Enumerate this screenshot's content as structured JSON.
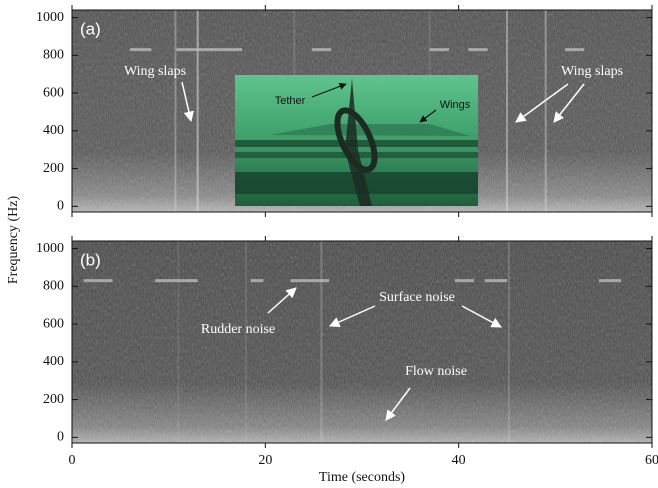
{
  "chart_data": {
    "type": "spectrogram",
    "xlabel": "Time (seconds)",
    "ylabel": "Frequency (Hz)",
    "xlim": [
      0,
      60
    ],
    "xticks": [
      0,
      20,
      40,
      60
    ],
    "panels": [
      {
        "label": "(a)",
        "ylim": [
          -30,
          1040
        ],
        "yticks": [
          0,
          200,
          400,
          600,
          800,
          1000
        ],
        "annotations": [
          "Wing slaps",
          "Wing slaps"
        ],
        "inset": {
          "labels": [
            "Tether",
            "Wings"
          ]
        }
      },
      {
        "label": "(b)",
        "ylim": [
          -30,
          1040
        ],
        "yticks": [
          0,
          200,
          400,
          600,
          800,
          1000
        ],
        "annotations": [
          "Rudder noise",
          "Surface noise",
          "Flow noise"
        ]
      }
    ]
  }
}
